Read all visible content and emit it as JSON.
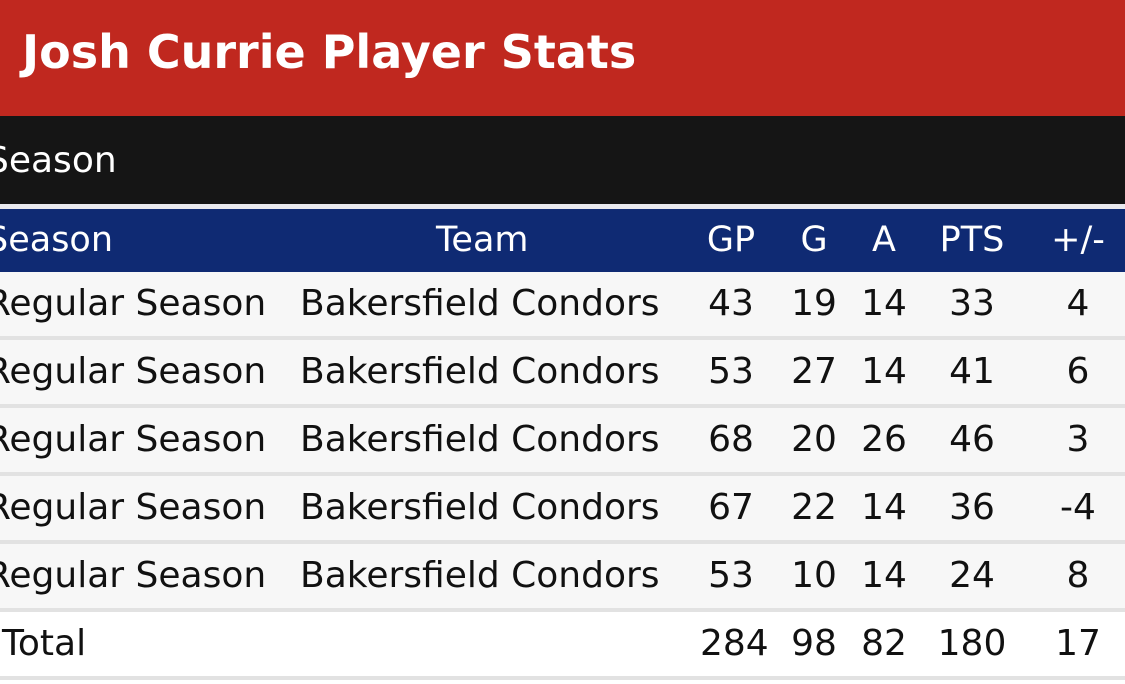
{
  "header": {
    "title": "Josh Currie Player Stats"
  },
  "section": {
    "label": "Season"
  },
  "table": {
    "columns": {
      "season": "Season",
      "team": "Team",
      "gp": "GP",
      "g": "G",
      "a": "A",
      "pts": "PTS",
      "plus_minus": "+/-"
    },
    "rows": [
      {
        "season": "Regular Season",
        "team": "Bakersfield Condors",
        "gp": "43",
        "g": "19",
        "a": "14",
        "pts": "33",
        "plus_minus": "4"
      },
      {
        "season": "Regular Season",
        "team": "Bakersfield Condors",
        "gp": "53",
        "g": "27",
        "a": "14",
        "pts": "41",
        "plus_minus": "6"
      },
      {
        "season": "Regular Season",
        "team": "Bakersfield Condors",
        "gp": "68",
        "g": "20",
        "a": "26",
        "pts": "46",
        "plus_minus": "3"
      },
      {
        "season": "Regular Season",
        "team": "Bakersfield Condors",
        "gp": "67",
        "g": "22",
        "a": "14",
        "pts": "36",
        "plus_minus": "-4"
      },
      {
        "season": "Regular Season",
        "team": "Bakersfield Condors",
        "gp": "53",
        "g": "10",
        "a": "14",
        "pts": "24",
        "plus_minus": "8"
      }
    ],
    "total": {
      "label": "Total",
      "gp": "284",
      "g": "98",
      "a": "82",
      "pts": "180",
      "plus_minus": "17"
    }
  },
  "colors": {
    "title_bg": "#c0281f",
    "section_bg": "#151515",
    "header_bg": "#0f2a73",
    "row_bg": "#f7f7f7"
  }
}
